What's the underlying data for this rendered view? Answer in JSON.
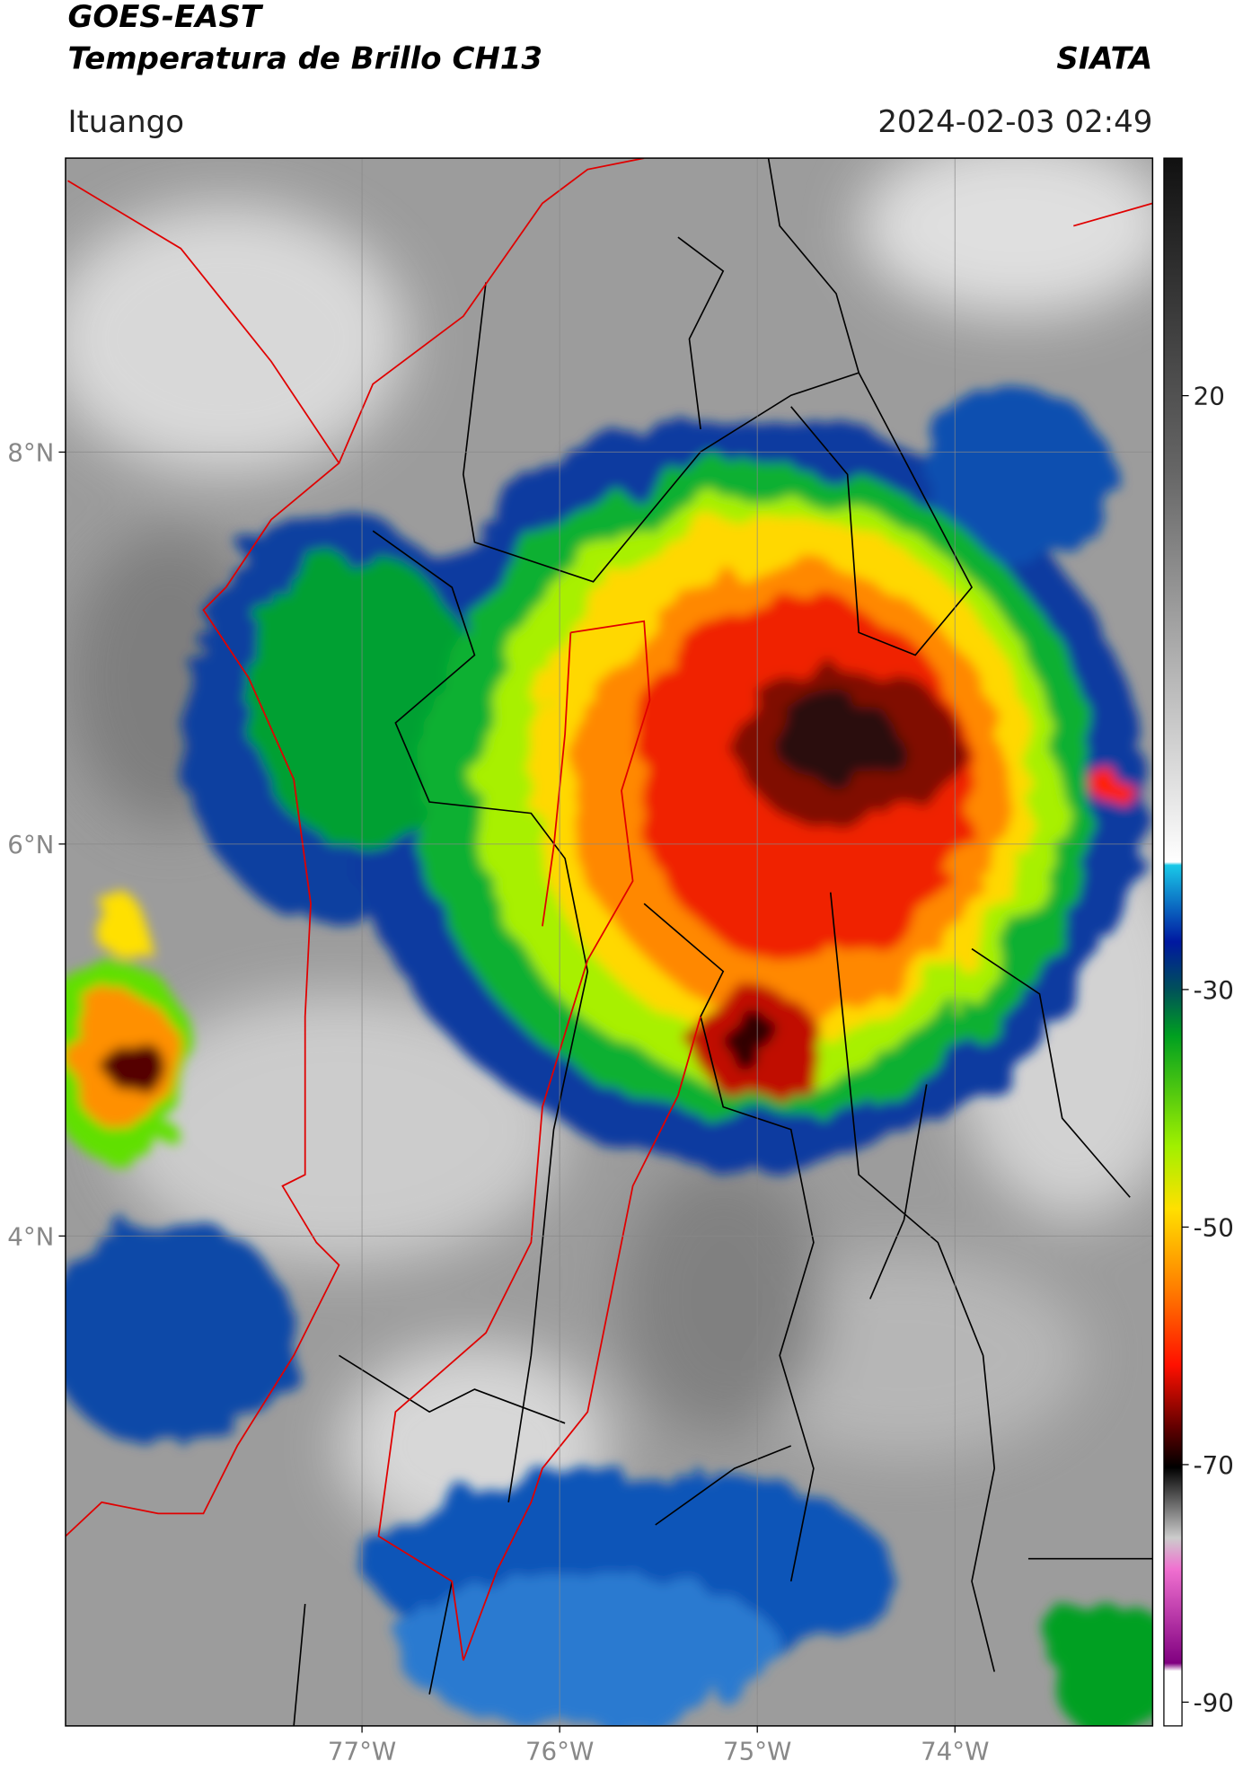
{
  "header": {
    "title": "GOES-EAST",
    "subtitle": "Temperatura de Brillo CH13",
    "source": "SIATA",
    "location": "Ituango",
    "datetime": "2024-02-03 02:49"
  },
  "map": {
    "xlim": [
      -78.5,
      -73
    ],
    "ylim": [
      1.5,
      9.5
    ],
    "xticks": [
      {
        "value": -77,
        "label": "77°W"
      },
      {
        "value": -76,
        "label": "76°W"
      },
      {
        "value": -75,
        "label": "75°W"
      },
      {
        "value": -74,
        "label": "74°W"
      }
    ],
    "yticks": [
      {
        "value": 4,
        "label": "4°N"
      },
      {
        "value": 6,
        "label": "6°N"
      },
      {
        "value": 8,
        "label": "8°N"
      }
    ],
    "grid": true
  },
  "colorbar": {
    "lim": [
      -92,
      40
    ],
    "ticks": [
      20,
      -30,
      -50,
      -70,
      -90
    ]
  }
}
